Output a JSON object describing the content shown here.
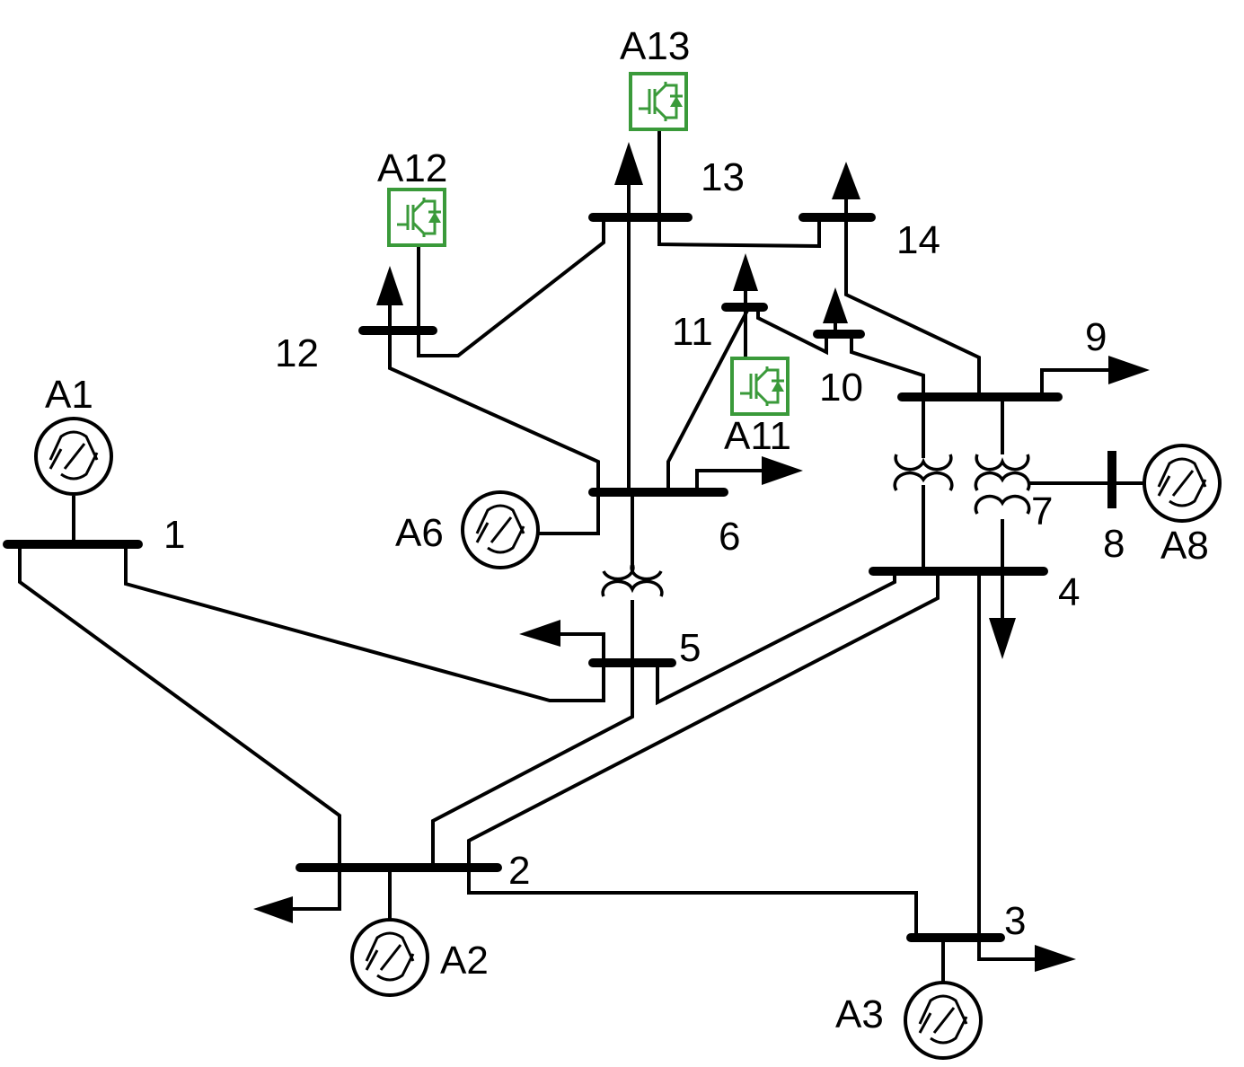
{
  "buses": [
    {
      "id": "b1",
      "label": "1"
    },
    {
      "id": "b2",
      "label": "2"
    },
    {
      "id": "b3",
      "label": "3"
    },
    {
      "id": "b4",
      "label": "4"
    },
    {
      "id": "b5",
      "label": "5"
    },
    {
      "id": "b6",
      "label": "6"
    },
    {
      "id": "b7",
      "label": "7"
    },
    {
      "id": "b8",
      "label": "8"
    },
    {
      "id": "b9",
      "label": "9"
    },
    {
      "id": "b10",
      "label": "10"
    },
    {
      "id": "b11",
      "label": "11"
    },
    {
      "id": "b12",
      "label": "12"
    },
    {
      "id": "b13",
      "label": "13"
    },
    {
      "id": "b14",
      "label": "14"
    }
  ],
  "generators": [
    {
      "id": "g1",
      "label": "A1",
      "bus": "1"
    },
    {
      "id": "g2",
      "label": "A2",
      "bus": "2"
    },
    {
      "id": "g3",
      "label": "A3",
      "bus": "3"
    },
    {
      "id": "g6",
      "label": "A6",
      "bus": "6"
    },
    {
      "id": "g8",
      "label": "A8",
      "bus": "8"
    }
  ],
  "converters": [
    {
      "id": "c11",
      "label": "A11",
      "bus": "11"
    },
    {
      "id": "c12",
      "label": "A12",
      "bus": "12"
    },
    {
      "id": "c13",
      "label": "A13",
      "bus": "13"
    }
  ],
  "colors": {
    "line": "#000000",
    "converter": "#3a9a3a",
    "background": "#ffffff"
  },
  "icons": {
    "generator": "synchronous-generator-icon",
    "converter": "igbt-converter-icon",
    "transformer": "transformer-icon",
    "load": "load-arrow-icon"
  }
}
